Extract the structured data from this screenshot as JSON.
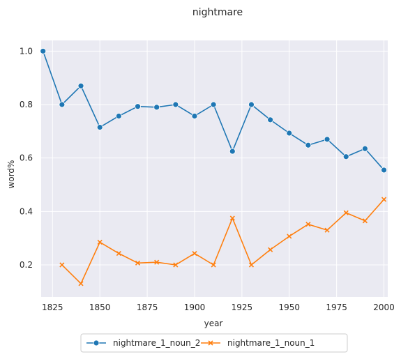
{
  "chart_data": {
    "type": "line",
    "title": "nightmare",
    "xlabel": "year",
    "ylabel": "word%",
    "xlim": [
      1819,
      2002
    ],
    "ylim": [
      0.08,
      1.04
    ],
    "xticks": [
      1825,
      1850,
      1875,
      1900,
      1925,
      1950,
      1975,
      2000
    ],
    "yticks": [
      0.2,
      0.4,
      0.6,
      0.8,
      1.0
    ],
    "xtick_labels": [
      "1825",
      "1850",
      "1875",
      "1900",
      "1925",
      "1950",
      "1975",
      "2000"
    ],
    "ytick_labels": [
      "0.2",
      "0.4",
      "0.6",
      "0.8",
      "1.0"
    ],
    "grid": true,
    "legend_position": "bottom-center, below plot",
    "background_color": "#eaeaf2",
    "series": [
      {
        "name": "nightmare_1_noun_2",
        "color": "#1f77b4",
        "marker": "circle",
        "x": [
          1820,
          1830,
          1840,
          1850,
          1860,
          1870,
          1880,
          1890,
          1900,
          1910,
          1920,
          1930,
          1940,
          1950,
          1960,
          1970,
          1980,
          1990,
          2000
        ],
        "y": [
          1.0,
          0.8,
          0.87,
          0.715,
          0.757,
          0.793,
          0.79,
          0.8,
          0.757,
          0.8,
          0.625,
          0.8,
          0.743,
          0.693,
          0.648,
          0.67,
          0.605,
          0.635,
          0.555
        ]
      },
      {
        "name": "nightmare_1_noun_1",
        "color": "#ff7f0e",
        "marker": "x",
        "x": [
          1830,
          1840,
          1850,
          1860,
          1870,
          1880,
          1890,
          1900,
          1910,
          1920,
          1930,
          1940,
          1950,
          1960,
          1970,
          1980,
          1990,
          2000
        ],
        "y": [
          0.2,
          0.13,
          0.285,
          0.243,
          0.207,
          0.21,
          0.2,
          0.243,
          0.2,
          0.375,
          0.2,
          0.257,
          0.307,
          0.352,
          0.33,
          0.395,
          0.365,
          0.445
        ]
      }
    ]
  }
}
